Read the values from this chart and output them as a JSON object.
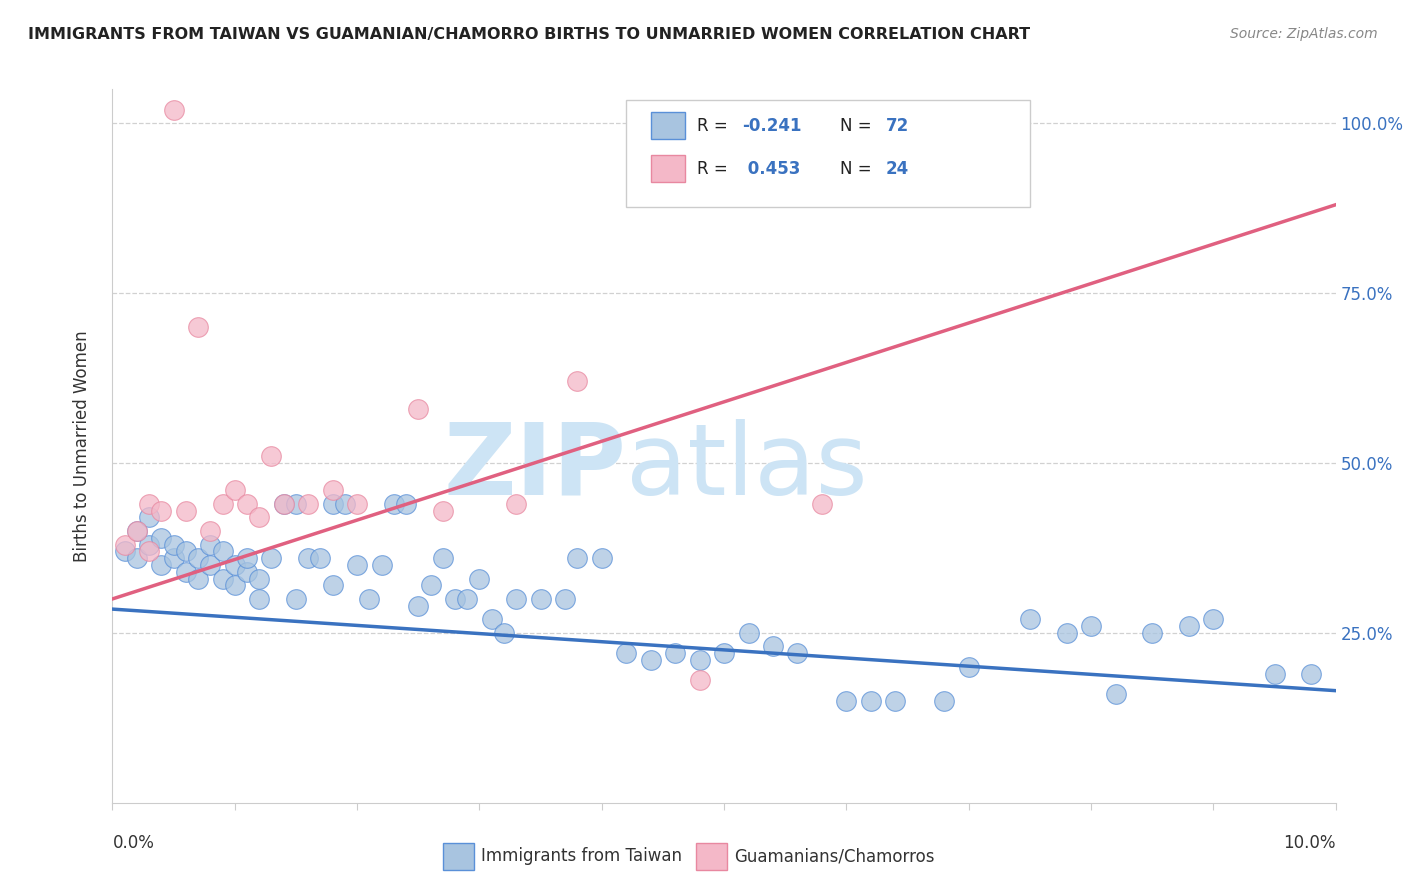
{
  "title": "IMMIGRANTS FROM TAIWAN VS GUAMANIAN/CHAMORRO BIRTHS TO UNMARRIED WOMEN CORRELATION CHART",
  "source": "Source: ZipAtlas.com",
  "ylabel": "Births to Unmarried Women",
  "legend_blue_R": "-0.241",
  "legend_blue_N": "72",
  "legend_pink_R": "0.453",
  "legend_pink_N": "24",
  "blue_scatter_color": "#a8c4e0",
  "pink_scatter_color": "#f4b8c8",
  "blue_line_color": "#3a72c0",
  "pink_line_color": "#e06080",
  "blue_edge_color": "#5a90d8",
  "pink_edge_color": "#e888a0",
  "grid_color": "#cccccc",
  "watermark_color": "#cde4f5",
  "xmin": 0.0,
  "xmax": 0.1,
  "ymin": 0.0,
  "ymax": 1.05,
  "ytick_vals": [
    0.0,
    0.25,
    0.5,
    0.75,
    1.0
  ],
  "ytick_labels": [
    "",
    "25.0%",
    "50.0%",
    "75.0%",
    "100.0%"
  ],
  "blue_trendline_x": [
    0.0,
    0.1
  ],
  "blue_trendline_y": [
    0.285,
    0.165
  ],
  "pink_trendline_x": [
    0.0,
    0.1
  ],
  "pink_trendline_y": [
    0.3,
    0.88
  ],
  "blue_x": [
    0.001,
    0.002,
    0.002,
    0.003,
    0.003,
    0.004,
    0.004,
    0.005,
    0.005,
    0.006,
    0.006,
    0.007,
    0.007,
    0.008,
    0.008,
    0.009,
    0.009,
    0.01,
    0.01,
    0.011,
    0.011,
    0.012,
    0.012,
    0.013,
    0.014,
    0.015,
    0.015,
    0.016,
    0.017,
    0.018,
    0.018,
    0.019,
    0.02,
    0.021,
    0.022,
    0.023,
    0.024,
    0.025,
    0.026,
    0.027,
    0.028,
    0.029,
    0.03,
    0.031,
    0.032,
    0.033,
    0.035,
    0.037,
    0.038,
    0.04,
    0.042,
    0.044,
    0.046,
    0.048,
    0.05,
    0.052,
    0.054,
    0.056,
    0.06,
    0.062,
    0.064,
    0.068,
    0.07,
    0.075,
    0.078,
    0.08,
    0.082,
    0.085,
    0.088,
    0.09,
    0.095,
    0.098
  ],
  "blue_y": [
    0.37,
    0.36,
    0.4,
    0.38,
    0.42,
    0.35,
    0.39,
    0.36,
    0.38,
    0.34,
    0.37,
    0.33,
    0.36,
    0.35,
    0.38,
    0.33,
    0.37,
    0.32,
    0.35,
    0.34,
    0.36,
    0.3,
    0.33,
    0.36,
    0.44,
    0.3,
    0.44,
    0.36,
    0.36,
    0.32,
    0.44,
    0.44,
    0.35,
    0.3,
    0.35,
    0.44,
    0.44,
    0.29,
    0.32,
    0.36,
    0.3,
    0.3,
    0.33,
    0.27,
    0.25,
    0.3,
    0.3,
    0.3,
    0.36,
    0.36,
    0.22,
    0.21,
    0.22,
    0.21,
    0.22,
    0.25,
    0.23,
    0.22,
    0.15,
    0.15,
    0.15,
    0.15,
    0.2,
    0.27,
    0.25,
    0.26,
    0.16,
    0.25,
    0.26,
    0.27,
    0.19,
    0.19
  ],
  "pink_x": [
    0.001,
    0.002,
    0.003,
    0.003,
    0.004,
    0.005,
    0.006,
    0.007,
    0.008,
    0.009,
    0.01,
    0.011,
    0.012,
    0.013,
    0.014,
    0.016,
    0.018,
    0.02,
    0.025,
    0.027,
    0.033,
    0.038,
    0.048,
    0.058
  ],
  "pink_y": [
    0.38,
    0.4,
    0.37,
    0.44,
    0.43,
    1.02,
    0.43,
    0.7,
    0.4,
    0.44,
    0.46,
    0.44,
    0.42,
    0.51,
    0.44,
    0.44,
    0.46,
    0.44,
    0.58,
    0.43,
    0.44,
    0.62,
    0.18,
    0.44
  ]
}
